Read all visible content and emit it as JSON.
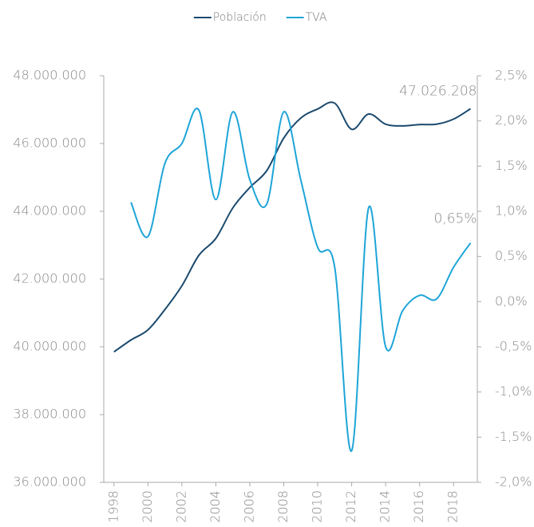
{
  "chart_data": {
    "type": "line",
    "x": [
      1998,
      1999,
      2000,
      2001,
      2002,
      2003,
      2004,
      2005,
      2006,
      2007,
      2008,
      2009,
      2010,
      2011,
      2012,
      2013,
      2014,
      2015,
      2016,
      2017,
      2018,
      2019
    ],
    "xlim": [
      1997.4,
      2019.4
    ],
    "xticks": [
      1998,
      2000,
      2002,
      2004,
      2006,
      2008,
      2010,
      2012,
      2014,
      2016,
      2018
    ],
    "ylim": [
      36000000,
      48000000
    ],
    "yticks": [
      {
        "value": 36000000,
        "label": "36.000.000"
      },
      {
        "value": 38000000,
        "label": "38.000.000"
      },
      {
        "value": 40000000,
        "label": "40.000.000"
      },
      {
        "value": 42000000,
        "label": "42.000.000"
      },
      {
        "value": 44000000,
        "label": "44.000.000"
      },
      {
        "value": 46000000,
        "label": "46.000.000"
      },
      {
        "value": 48000000,
        "label": "48.000.000"
      }
    ],
    "y2lim": [
      -2.0,
      2.5
    ],
    "y2ticks": [
      {
        "value": -2.0,
        "label": "-2,0%"
      },
      {
        "value": -1.5,
        "label": "-1,5%"
      },
      {
        "value": -1.0,
        "label": "-1,0%"
      },
      {
        "value": -0.5,
        "label": "-0,5%"
      },
      {
        "value": 0.0,
        "label": "0,0%"
      },
      {
        "value": 0.5,
        "label": "0,5%"
      },
      {
        "value": 1.0,
        "label": "1,0%"
      },
      {
        "value": 1.5,
        "label": "1,5%"
      },
      {
        "value": 2.0,
        "label": "2,0%"
      },
      {
        "value": 2.5,
        "label": "2,5%"
      }
    ],
    "series": [
      {
        "name": "Población",
        "color": "#1b4a6e",
        "values": [
          39850000,
          40200000,
          40500000,
          41100000,
          41800000,
          42700000,
          43200000,
          44100000,
          44700000,
          45200000,
          46160000,
          46750000,
          47020000,
          47190000,
          46420000,
          46870000,
          46570000,
          46520000,
          46560000,
          46570000,
          46720000,
          47026208
        ],
        "value_labels": [
          null,
          null,
          null,
          null,
          null,
          null,
          null,
          null,
          null,
          null,
          null,
          null,
          null,
          null,
          null,
          null,
          null,
          null,
          null,
          null,
          null,
          "47.026.208"
        ]
      },
      {
        "name": "TVA",
        "color": "#1ea5d8",
        "axis": "y2",
        "values": [
          null,
          1.1,
          0.72,
          1.53,
          1.75,
          2.12,
          1.13,
          2.1,
          1.35,
          1.08,
          2.1,
          1.35,
          0.6,
          0.38,
          -1.65,
          1.04,
          -0.5,
          -0.1,
          0.07,
          0.03,
          0.38,
          0.65
        ],
        "value_labels": [
          null,
          null,
          null,
          null,
          null,
          null,
          null,
          null,
          null,
          null,
          null,
          null,
          null,
          null,
          null,
          null,
          null,
          null,
          null,
          null,
          null,
          "0,65%"
        ]
      }
    ],
    "legend": "top"
  }
}
